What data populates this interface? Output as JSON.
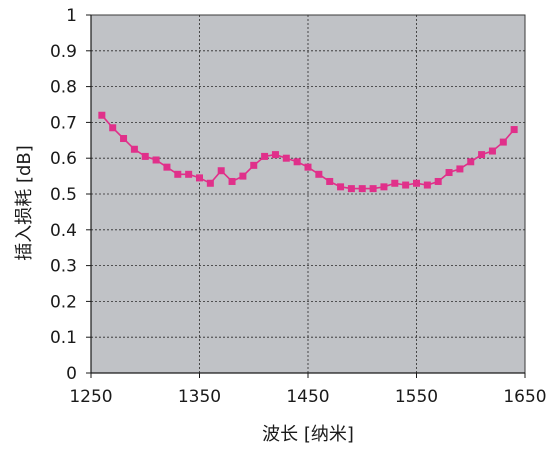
{
  "chart_data": {
    "type": "line",
    "xlabel": "波长 [纳米]",
    "ylabel": "插入损耗 [dB]",
    "xlim": [
      1250,
      1650
    ],
    "ylim": [
      0,
      1
    ],
    "x_ticks": [
      1250,
      1350,
      1450,
      1550,
      1650
    ],
    "y_ticks": [
      0,
      0.1,
      0.2,
      0.3,
      0.4,
      0.5,
      0.6,
      0.7,
      0.8,
      0.9,
      1
    ],
    "x_tick_labels": [
      "1250",
      "1350",
      "1450",
      "1550",
      "1650"
    ],
    "y_tick_labels": [
      "0",
      "0.1",
      "0.2",
      "0.3",
      "0.4",
      "0.5",
      "0.6",
      "0.7",
      "0.8",
      "0.9",
      "1"
    ],
    "grid": true,
    "plot_background": "#c0c2c6",
    "series": [
      {
        "color": "#e0308a",
        "marker": "square",
        "x": [
          1260,
          1270,
          1280,
          1290,
          1300,
          1310,
          1320,
          1330,
          1340,
          1350,
          1360,
          1370,
          1380,
          1390,
          1400,
          1410,
          1420,
          1430,
          1440,
          1450,
          1460,
          1470,
          1480,
          1490,
          1500,
          1510,
          1520,
          1530,
          1540,
          1550,
          1560,
          1570,
          1580,
          1590,
          1600,
          1610,
          1620,
          1630,
          1640
        ],
        "y": [
          0.72,
          0.685,
          0.655,
          0.625,
          0.605,
          0.595,
          0.575,
          0.555,
          0.555,
          0.545,
          0.53,
          0.565,
          0.535,
          0.55,
          0.58,
          0.605,
          0.61,
          0.6,
          0.59,
          0.575,
          0.555,
          0.535,
          0.52,
          0.515,
          0.515,
          0.515,
          0.52,
          0.53,
          0.525,
          0.53,
          0.525,
          0.535,
          0.56,
          0.57,
          0.59,
          0.61,
          0.62,
          0.645,
          0.68
        ]
      }
    ]
  }
}
